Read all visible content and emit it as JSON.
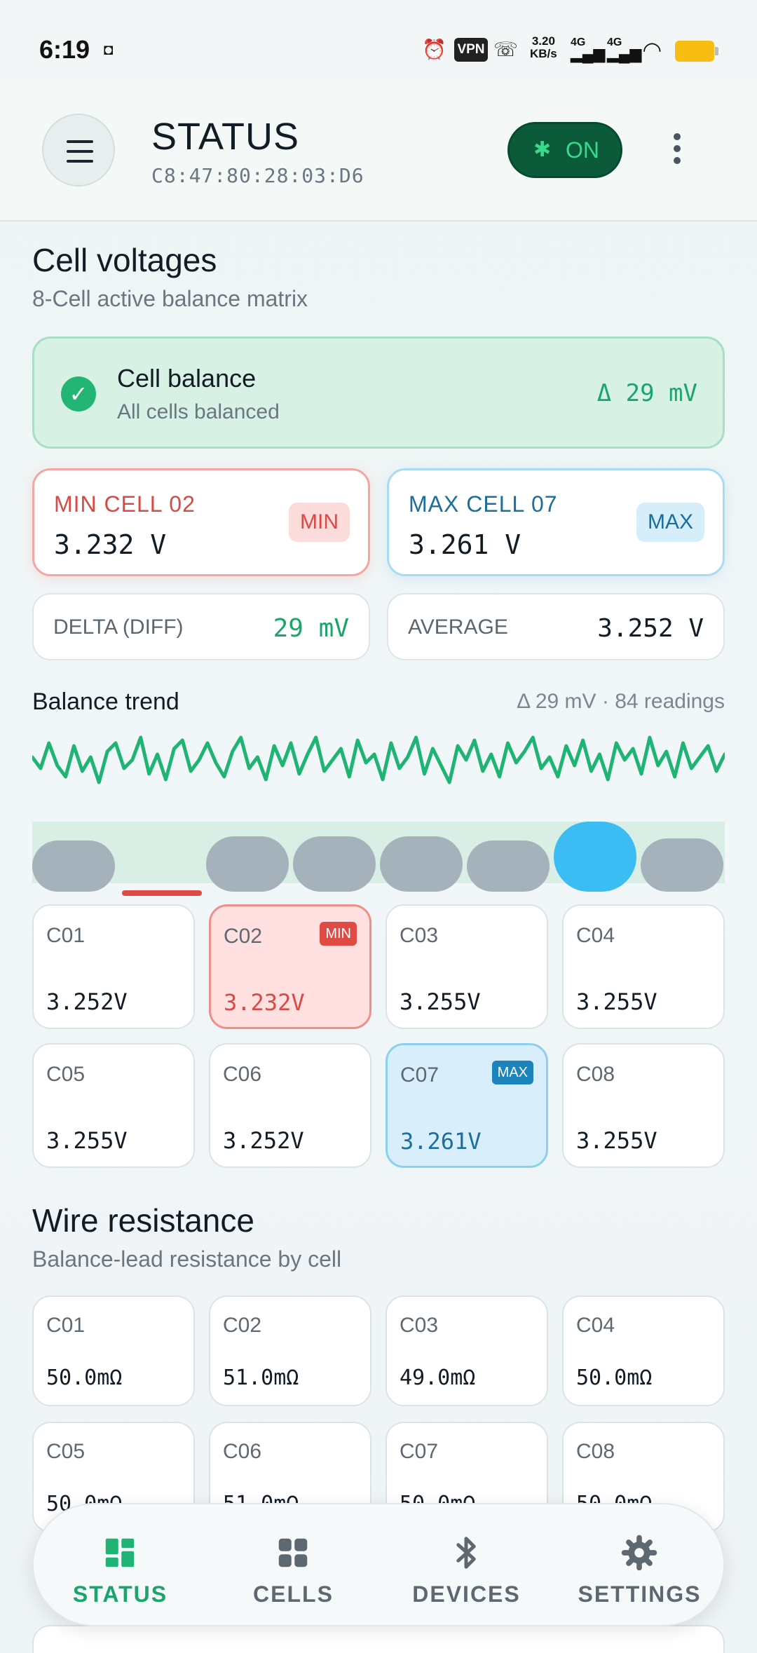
{
  "status_bar": {
    "time": "6:19",
    "vpn": "VPN",
    "speed_value": "3.20",
    "speed_unit": "KB/s",
    "net1": "4G",
    "net2": "4G"
  },
  "header": {
    "title": "STATUS",
    "mac": "C8:47:80:28:03:D6",
    "bt_label": "ON",
    "icons": [
      "menu-icon",
      "bluetooth-icon",
      "more-vert-icon"
    ]
  },
  "cell_voltages": {
    "title": "Cell voltages",
    "subtitle": "8-Cell active balance matrix",
    "balance": {
      "title": "Cell balance",
      "status": "All cells balanced",
      "delta": "Δ 29 mV"
    },
    "min": {
      "label": "MIN CELL 02",
      "value": "3.232 V",
      "tag": "MIN"
    },
    "max": {
      "label": "MAX CELL 07",
      "value": "3.261 V",
      "tag": "MAX"
    },
    "delta": {
      "label": "DELTA (DIFF)",
      "value": "29 mV"
    },
    "average": {
      "label": "AVERAGE",
      "value": "3.252 V"
    }
  },
  "trend": {
    "title": "Balance trend",
    "meta": "Δ 29 mV · 84 readings",
    "color": "#1fb374",
    "readings": [
      0.55,
      0.35,
      0.8,
      0.4,
      0.2,
      0.75,
      0.3,
      0.55,
      0.1,
      0.65,
      0.8,
      0.35,
      0.5,
      0.9,
      0.25,
      0.6,
      0.15,
      0.7,
      0.85,
      0.3,
      0.5,
      0.8,
      0.45,
      0.2,
      0.65,
      0.9,
      0.35,
      0.55,
      0.15,
      0.75,
      0.4,
      0.8,
      0.25,
      0.6,
      0.9,
      0.3,
      0.5,
      0.7,
      0.2,
      0.85,
      0.45,
      0.6,
      0.15,
      0.8,
      0.35,
      0.55,
      0.9,
      0.25,
      0.7,
      0.4,
      0.1,
      0.75,
      0.5,
      0.85,
      0.3,
      0.6,
      0.2,
      0.8,
      0.45,
      0.65,
      0.9,
      0.35,
      0.55,
      0.2,
      0.75,
      0.4,
      0.85,
      0.3,
      0.6,
      0.15,
      0.8,
      0.5,
      0.7,
      0.25,
      0.9,
      0.4,
      0.65,
      0.2,
      0.8,
      0.35,
      0.55,
      0.75,
      0.3,
      0.6
    ]
  },
  "bars": [
    {
      "cell": "C01",
      "level": 0.55,
      "color": "#a5b2bb"
    },
    {
      "cell": "C02",
      "level": 0.0,
      "color": "#e04a44"
    },
    {
      "cell": "C03",
      "level": 0.65,
      "color": "#a5b2bb"
    },
    {
      "cell": "C04",
      "level": 0.65,
      "color": "#a5b2bb"
    },
    {
      "cell": "C05",
      "level": 0.65,
      "color": "#a5b2bb"
    },
    {
      "cell": "C06",
      "level": 0.55,
      "color": "#a5b2bb"
    },
    {
      "cell": "C07",
      "level": 1.0,
      "color": "#3bbcf3"
    },
    {
      "cell": "C08",
      "level": 0.6,
      "color": "#a5b2bb"
    }
  ],
  "cells": [
    {
      "name": "C01",
      "value": "3.252V",
      "badge": ""
    },
    {
      "name": "C02",
      "value": "3.232V",
      "badge": "MIN"
    },
    {
      "name": "C03",
      "value": "3.255V",
      "badge": ""
    },
    {
      "name": "C04",
      "value": "3.255V",
      "badge": ""
    },
    {
      "name": "C05",
      "value": "3.255V",
      "badge": ""
    },
    {
      "name": "C06",
      "value": "3.252V",
      "badge": ""
    },
    {
      "name": "C07",
      "value": "3.261V",
      "badge": "MAX"
    },
    {
      "name": "C08",
      "value": "3.255V",
      "badge": ""
    }
  ],
  "wire_resistance": {
    "title": "Wire resistance",
    "subtitle": "Balance-lead resistance by cell",
    "cells": [
      {
        "name": "C01",
        "value": "50.0mΩ"
      },
      {
        "name": "C02",
        "value": "51.0mΩ"
      },
      {
        "name": "C03",
        "value": "49.0mΩ"
      },
      {
        "name": "C04",
        "value": "50.0mΩ"
      },
      {
        "name": "C05",
        "value": "50.0mΩ"
      },
      {
        "name": "C06",
        "value": "51.0mΩ"
      },
      {
        "name": "C07",
        "value": "50.0mΩ"
      },
      {
        "name": "C08",
        "value": "50.0mΩ"
      }
    ]
  },
  "nav": [
    {
      "label": "STATUS",
      "icon": "dashboard-icon",
      "active": true
    },
    {
      "label": "CELLS",
      "icon": "grid-icon",
      "active": false
    },
    {
      "label": "DEVICES",
      "icon": "bluetooth-icon",
      "active": false
    },
    {
      "label": "SETTINGS",
      "icon": "gear-icon",
      "active": false
    }
  ]
}
